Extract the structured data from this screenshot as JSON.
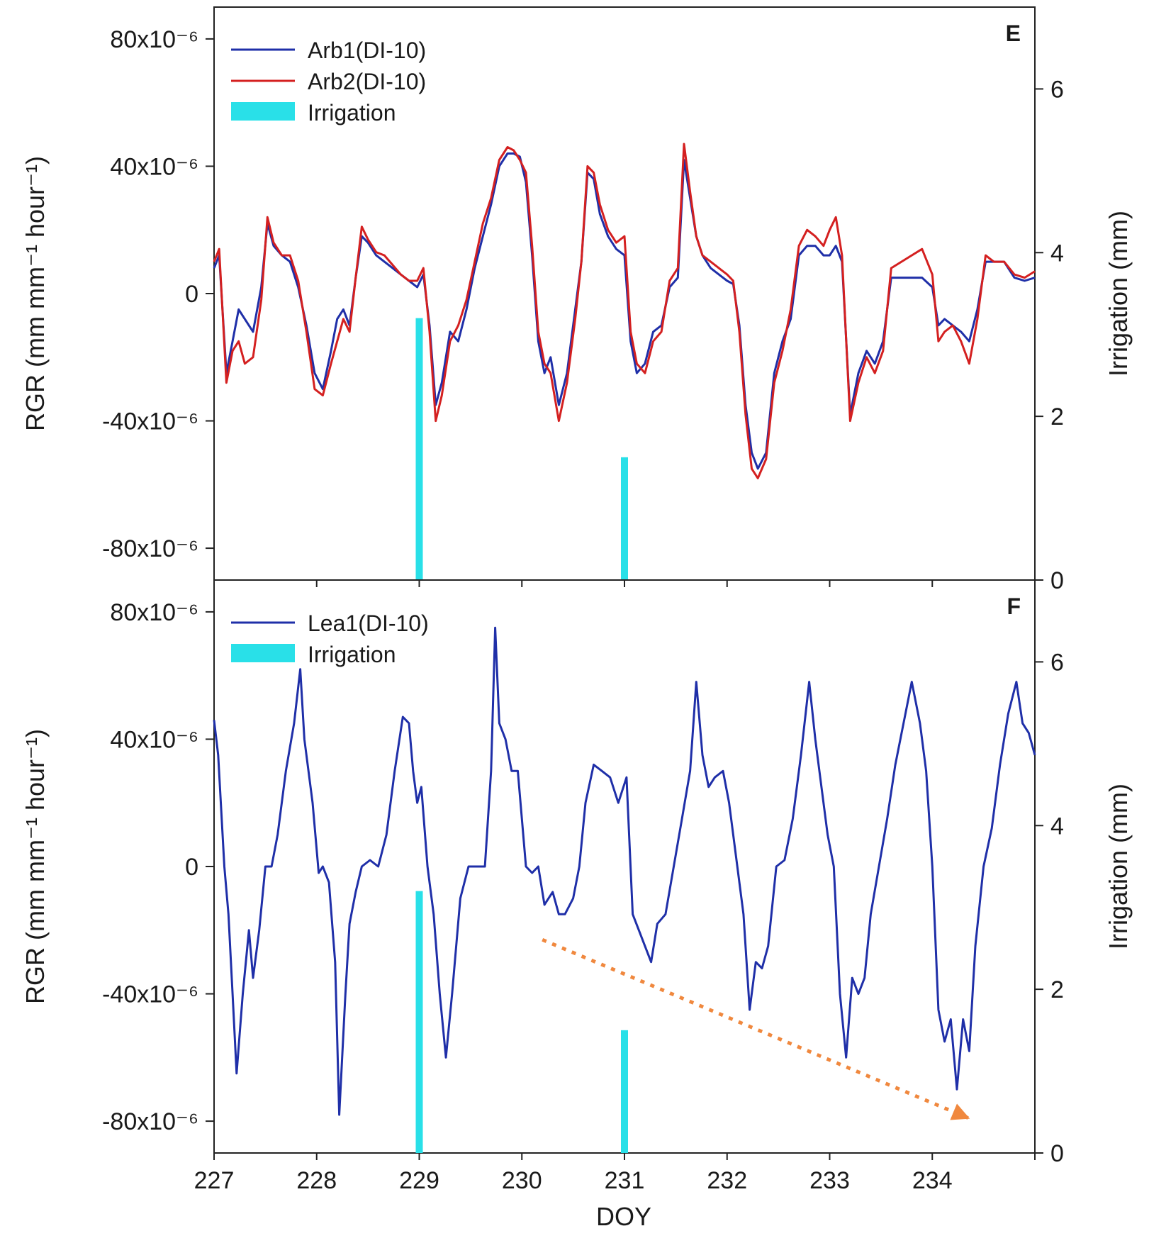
{
  "chart_data": [
    {
      "panel": "E",
      "type": "line",
      "xlabel": "DOY",
      "ylabel": "RGR (mm mm⁻¹ hour⁻¹)",
      "y2label": "Irrigation (mm)",
      "xlim": [
        227,
        235
      ],
      "ylim": [
        -9e-05,
        9e-05
      ],
      "y2lim": [
        0,
        7
      ],
      "yticks": [
        -8e-05,
        -4e-05,
        0,
        4e-05,
        8e-05
      ],
      "ytick_labels": [
        "-80x10⁻⁶",
        "-40x10⁻⁶",
        "0",
        "40x10⁻⁶",
        "80x10⁻⁶"
      ],
      "y2ticks": [
        0,
        2,
        4,
        6
      ],
      "y2tick_labels": [
        "0",
        "2",
        "4",
        "6"
      ],
      "legend_position": "top-left",
      "series": [
        {
          "name": "Arb1(DI-10)",
          "color": "#1f2fa8",
          "x": [
            227.0,
            227.05,
            227.12,
            227.18,
            227.24,
            227.3,
            227.38,
            227.46,
            227.52,
            227.58,
            227.66,
            227.74,
            227.82,
            227.9,
            227.98,
            228.06,
            228.14,
            228.2,
            228.26,
            228.32,
            228.38,
            228.44,
            228.5,
            228.58,
            228.66,
            228.74,
            228.82,
            228.9,
            228.98,
            229.04,
            229.1,
            229.16,
            229.22,
            229.3,
            229.38,
            229.46,
            229.54,
            229.62,
            229.7,
            229.78,
            229.86,
            229.92,
            229.98,
            230.04,
            230.1,
            230.16,
            230.22,
            230.28,
            230.36,
            230.44,
            230.52,
            230.58,
            230.64,
            230.7,
            230.76,
            230.84,
            230.92,
            231.0,
            231.06,
            231.12,
            231.2,
            231.28,
            231.36,
            231.44,
            231.52,
            231.58,
            231.64,
            231.7,
            231.76,
            231.84,
            231.92,
            232.0,
            232.06,
            232.12,
            232.18,
            232.24,
            232.3,
            232.38,
            232.46,
            232.54,
            232.62,
            232.7,
            232.78,
            232.86,
            232.94,
            233.0,
            233.06,
            233.12,
            233.2,
            233.28,
            233.36,
            233.44,
            233.52,
            233.6,
            233.7,
            233.8,
            233.9,
            234.0,
            234.06,
            234.12,
            234.2,
            234.28,
            234.36,
            234.44,
            234.52,
            234.6,
            234.7,
            234.8,
            234.9,
            235.0
          ],
          "y": [
            8e-06,
            1.2e-05,
            -2.5e-05,
            -1.5e-05,
            -5e-06,
            -8e-06,
            -1.2e-05,
            2e-06,
            2.2e-05,
            1.5e-05,
            1.2e-05,
            1e-05,
            2e-06,
            -1e-05,
            -2.5e-05,
            -3e-05,
            -1.8e-05,
            -8e-06,
            -5e-06,
            -1e-05,
            5e-06,
            1.8e-05,
            1.6e-05,
            1.2e-05,
            1e-05,
            8e-06,
            6e-06,
            4e-06,
            2e-06,
            6e-06,
            -1e-05,
            -3.5e-05,
            -2.8e-05,
            -1.2e-05,
            -1.5e-05,
            -5e-06,
            8e-06,
            1.8e-05,
            2.8e-05,
            4e-05,
            4.4e-05,
            4.4e-05,
            4.3e-05,
            3.5e-05,
            1.2e-05,
            -1.5e-05,
            -2.5e-05,
            -2e-05,
            -3.5e-05,
            -2.5e-05,
            -5e-06,
            1e-05,
            3.8e-05,
            3.6e-05,
            2.5e-05,
            1.8e-05,
            1.4e-05,
            1.2e-05,
            -1.5e-05,
            -2.5e-05,
            -2.2e-05,
            -1.2e-05,
            -1e-05,
            2e-06,
            5e-06,
            4.2e-05,
            3e-05,
            1.8e-05,
            1.2e-05,
            8e-06,
            6e-06,
            4e-06,
            3e-06,
            -1e-05,
            -3.5e-05,
            -5e-05,
            -5.5e-05,
            -5e-05,
            -2.5e-05,
            -1.5e-05,
            -8e-06,
            1.2e-05,
            1.5e-05,
            1.5e-05,
            1.2e-05,
            1.2e-05,
            1.5e-05,
            1e-05,
            -3.8e-05,
            -2.5e-05,
            -1.8e-05,
            -2.2e-05,
            -1.5e-05,
            5e-06,
            5e-06,
            5e-06,
            5e-06,
            2e-06,
            -1e-05,
            -8e-06,
            -1e-05,
            -1.2e-05,
            -1.5e-05,
            -5e-06,
            1e-05,
            1e-05,
            1e-05,
            5e-06,
            4e-06,
            5e-06
          ]
        },
        {
          "name": "Arb2(DI-10)",
          "color": "#d42020",
          "x": [
            227.0,
            227.05,
            227.12,
            227.18,
            227.24,
            227.3,
            227.38,
            227.46,
            227.52,
            227.58,
            227.66,
            227.74,
            227.82,
            227.9,
            227.98,
            228.06,
            228.14,
            228.2,
            228.26,
            228.32,
            228.38,
            228.44,
            228.5,
            228.58,
            228.66,
            228.74,
            228.82,
            228.9,
            228.98,
            229.04,
            229.1,
            229.16,
            229.22,
            229.3,
            229.38,
            229.46,
            229.54,
            229.62,
            229.7,
            229.78,
            229.86,
            229.92,
            229.98,
            230.04,
            230.1,
            230.16,
            230.22,
            230.28,
            230.36,
            230.44,
            230.52,
            230.58,
            230.64,
            230.7,
            230.76,
            230.84,
            230.92,
            231.0,
            231.06,
            231.12,
            231.2,
            231.28,
            231.36,
            231.44,
            231.52,
            231.58,
            231.64,
            231.7,
            231.76,
            231.84,
            231.92,
            232.0,
            232.06,
            232.12,
            232.18,
            232.24,
            232.3,
            232.38,
            232.46,
            232.54,
            232.62,
            232.7,
            232.78,
            232.86,
            232.94,
            233.0,
            233.06,
            233.12,
            233.2,
            233.28,
            233.36,
            233.44,
            233.52,
            233.6,
            233.7,
            233.8,
            233.9,
            234.0,
            234.06,
            234.12,
            234.2,
            234.28,
            234.36,
            234.44,
            234.52,
            234.6,
            234.7,
            234.8,
            234.9,
            235.0
          ],
          "y": [
            1e-05,
            1.4e-05,
            -2.8e-05,
            -1.8e-05,
            -1.5e-05,
            -2.2e-05,
            -2e-05,
            -2e-06,
            2.4e-05,
            1.6e-05,
            1.2e-05,
            1.2e-05,
            4e-06,
            -1.2e-05,
            -3e-05,
            -3.2e-05,
            -2.2e-05,
            -1.5e-05,
            -8e-06,
            -1.2e-05,
            5e-06,
            2.1e-05,
            1.7e-05,
            1.3e-05,
            1.2e-05,
            9e-06,
            6e-06,
            4e-06,
            4e-06,
            8e-06,
            -1.2e-05,
            -4e-05,
            -3.2e-05,
            -1.5e-05,
            -1e-05,
            -2e-06,
            1e-05,
            2.2e-05,
            3e-05,
            4.2e-05,
            4.6e-05,
            4.5e-05,
            4.2e-05,
            3.8e-05,
            1.5e-05,
            -1.2e-05,
            -2.2e-05,
            -2.5e-05,
            -4e-05,
            -2.8e-05,
            -8e-06,
            1e-05,
            4e-05,
            3.8e-05,
            2.8e-05,
            2e-05,
            1.6e-05,
            1.8e-05,
            -1.2e-05,
            -2.2e-05,
            -2.5e-05,
            -1.5e-05,
            -1.2e-05,
            4e-06,
            8e-06,
            4.7e-05,
            3.2e-05,
            1.8e-05,
            1.2e-05,
            1e-05,
            8e-06,
            6e-06,
            4e-06,
            -1.2e-05,
            -3.8e-05,
            -5.5e-05,
            -5.8e-05,
            -5.2e-05,
            -2.8e-05,
            -1.8e-05,
            -5e-06,
            1.5e-05,
            2e-05,
            1.8e-05,
            1.5e-05,
            2e-05,
            2.4e-05,
            1.2e-05,
            -4e-05,
            -2.8e-05,
            -2e-05,
            -2.5e-05,
            -1.8e-05,
            8e-06,
            1e-05,
            1.2e-05,
            1.4e-05,
            6e-06,
            -1.5e-05,
            -1.2e-05,
            -1e-05,
            -1.5e-05,
            -2.2e-05,
            -8e-06,
            1.2e-05,
            1e-05,
            1e-05,
            6e-06,
            5e-06,
            7e-06
          ]
        }
      ],
      "irrigation": [
        {
          "x": 229.0,
          "y": 3.2
        },
        {
          "x": 231.0,
          "y": 1.5
        }
      ],
      "irrigation_color": "#29e0e8",
      "legend": [
        {
          "label": "Arb1(DI-10)",
          "kind": "line",
          "color": "#1f2fa8"
        },
        {
          "label": "Arb2(DI-10)",
          "kind": "line",
          "color": "#d42020"
        },
        {
          "label": "Irrigation",
          "kind": "bar",
          "color": "#29e0e8"
        }
      ]
    },
    {
      "panel": "F",
      "type": "line",
      "xlabel": "DOY",
      "ylabel": "RGR (mm mm⁻¹ hour⁻¹)",
      "y2label": "Irrigation (mm)",
      "xlim": [
        227,
        235
      ],
      "ylim": [
        -9e-05,
        9e-05
      ],
      "y2lim": [
        0,
        7
      ],
      "xticks": [
        227,
        228,
        229,
        230,
        231,
        232,
        233,
        234
      ],
      "xtick_labels": [
        "227",
        "228",
        "229",
        "230",
        "231",
        "232",
        "233",
        "234"
      ],
      "yticks": [
        -8e-05,
        -4e-05,
        0,
        4e-05,
        8e-05
      ],
      "ytick_labels": [
        "-80x10⁻⁶",
        "-40x10⁻⁶",
        "0",
        "40x10⁻⁶",
        "80x10⁻⁶"
      ],
      "y2ticks": [
        0,
        2,
        4,
        6
      ],
      "y2tick_labels": [
        "0",
        "2",
        "4",
        "6"
      ],
      "legend_position": "top-left",
      "series": [
        {
          "name": "Lea1(DI-10)",
          "color": "#1f2fa8",
          "x": [
            227.0,
            227.04,
            227.1,
            227.14,
            227.18,
            227.22,
            227.28,
            227.34,
            227.38,
            227.44,
            227.5,
            227.56,
            227.62,
            227.7,
            227.78,
            227.84,
            227.88,
            227.92,
            227.96,
            228.02,
            228.06,
            228.12,
            228.18,
            228.22,
            228.28,
            228.32,
            228.38,
            228.44,
            228.52,
            228.6,
            228.68,
            228.76,
            228.84,
            228.9,
            228.94,
            228.98,
            229.02,
            229.08,
            229.14,
            229.2,
            229.26,
            229.32,
            229.4,
            229.48,
            229.56,
            229.64,
            229.7,
            229.74,
            229.78,
            229.84,
            229.9,
            229.96,
            230.04,
            230.1,
            230.16,
            230.22,
            230.3,
            230.36,
            230.42,
            230.5,
            230.56,
            230.62,
            230.7,
            230.78,
            230.86,
            230.94,
            231.02,
            231.08,
            231.14,
            231.2,
            231.26,
            231.32,
            231.4,
            231.48,
            231.56,
            231.64,
            231.7,
            231.76,
            231.82,
            231.88,
            231.96,
            232.02,
            232.1,
            232.16,
            232.22,
            232.28,
            232.34,
            232.4,
            232.48,
            232.56,
            232.64,
            232.72,
            232.8,
            232.86,
            232.92,
            232.98,
            233.04,
            233.1,
            233.16,
            233.22,
            233.28,
            233.34,
            233.4,
            233.48,
            233.56,
            233.64,
            233.72,
            233.8,
            233.88,
            233.94,
            234.0,
            234.06,
            234.12,
            234.18,
            234.24,
            234.3,
            234.36,
            234.42,
            234.5,
            234.58,
            234.66,
            234.74,
            234.82,
            234.88,
            234.94,
            235.0
          ],
          "y": [
            4.6e-05,
            3.5e-05,
            0.0,
            -1.5e-05,
            -4e-05,
            -6.5e-05,
            -4e-05,
            -2e-05,
            -3.5e-05,
            -2e-05,
            0.0,
            0.0,
            1e-05,
            3e-05,
            4.5e-05,
            6.2e-05,
            4e-05,
            3e-05,
            2e-05,
            -2e-06,
            0.0,
            -5e-06,
            -3e-05,
            -7.8e-05,
            -4e-05,
            -1.8e-05,
            -8e-06,
            0.0,
            2e-06,
            0.0,
            1e-05,
            3e-05,
            4.7e-05,
            4.5e-05,
            3e-05,
            2e-05,
            2.5e-05,
            0.0,
            -1.5e-05,
            -4e-05,
            -6e-05,
            -4e-05,
            -1e-05,
            0.0,
            0.0,
            0.0,
            3e-05,
            7.5e-05,
            4.5e-05,
            4e-05,
            3e-05,
            3e-05,
            0.0,
            -2e-06,
            0.0,
            -1.2e-05,
            -8e-06,
            -1.5e-05,
            -1.5e-05,
            -1e-05,
            0.0,
            2e-05,
            3.2e-05,
            3e-05,
            2.8e-05,
            2e-05,
            2.8e-05,
            -1.5e-05,
            -2e-05,
            -2.5e-05,
            -3e-05,
            -1.8e-05,
            -1.5e-05,
            0.0,
            1.5e-05,
            3e-05,
            5.8e-05,
            3.5e-05,
            2.5e-05,
            2.8e-05,
            3e-05,
            2e-05,
            0.0,
            -1.5e-05,
            -4.5e-05,
            -3e-05,
            -3.2e-05,
            -2.5e-05,
            0.0,
            2e-06,
            1.5e-05,
            3.5e-05,
            5.8e-05,
            4e-05,
            2.5e-05,
            1e-05,
            0.0,
            -4e-05,
            -6e-05,
            -3.5e-05,
            -4e-05,
            -3.5e-05,
            -1.5e-05,
            0.0,
            1.5e-05,
            3.2e-05,
            4.5e-05,
            5.8e-05,
            4.5e-05,
            3e-05,
            0.0,
            -4.5e-05,
            -5.5e-05,
            -4.8e-05,
            -7e-05,
            -4.8e-05,
            -5.8e-05,
            -2.5e-05,
            0.0,
            1.2e-05,
            3.2e-05,
            4.8e-05,
            5.8e-05,
            4.5e-05,
            4.2e-05,
            3.5e-05
          ],
          "trend_arrow": {
            "from": {
              "x": 230.2,
              "y": -2.3e-05
            },
            "to": {
              "x": 234.35,
              "y": -7.9e-05
            },
            "color": "#f0883e"
          }
        }
      ],
      "irrigation": [
        {
          "x": 229.0,
          "y": 3.2
        },
        {
          "x": 231.0,
          "y": 1.5
        }
      ],
      "irrigation_color": "#29e0e8",
      "legend": [
        {
          "label": "Lea1(DI-10)",
          "kind": "line",
          "color": "#1f2fa8"
        },
        {
          "label": "Irrigation",
          "kind": "bar",
          "color": "#29e0e8"
        }
      ]
    }
  ]
}
